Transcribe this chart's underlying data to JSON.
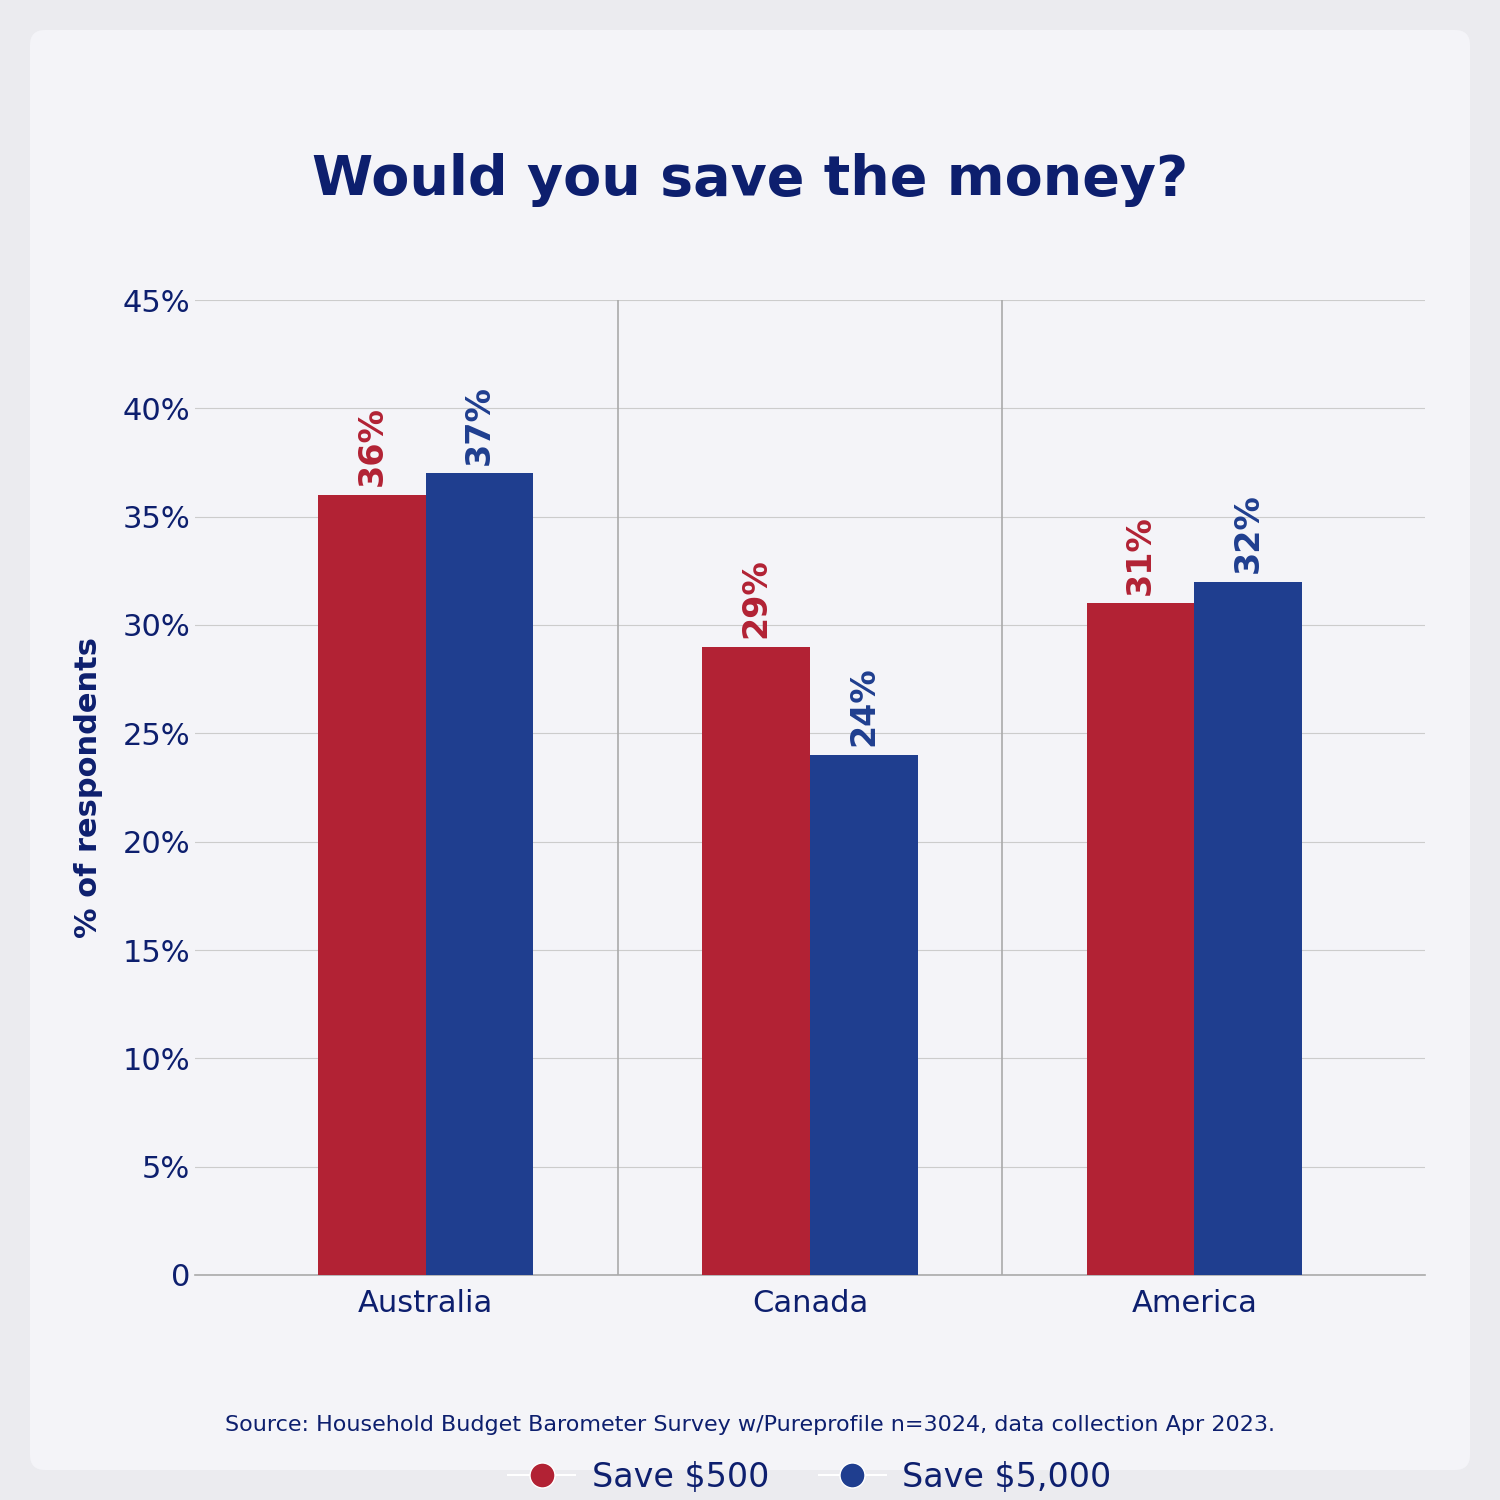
{
  "title": "Would you save the money?",
  "categories": [
    "Australia",
    "Canada",
    "America"
  ],
  "save500": [
    36,
    29,
    31
  ],
  "save5000": [
    37,
    24,
    32
  ],
  "color_red": "#B22234",
  "color_blue": "#1F3E8F",
  "ylabel": "% of respondents",
  "ylim": [
    0,
    45
  ],
  "yticks": [
    0,
    5,
    10,
    15,
    20,
    25,
    30,
    35,
    40,
    45
  ],
  "legend_labels": [
    "Save $500",
    "Save $5,000"
  ],
  "source_text": "Source: Household Budget Barometer Survey w/Pureprofile n=3024, data collection Apr 2023.",
  "background_color": "#EBEBEF",
  "card_color": "#F4F4F8",
  "title_color": "#0D1F6E",
  "tick_color": "#0D1F6E",
  "label_color": "#0D1F6E",
  "bar_width": 0.28,
  "title_fontsize": 40,
  "axis_fontsize": 22,
  "tick_fontsize": 22,
  "label_fontsize": 22,
  "legend_fontsize": 24,
  "source_fontsize": 16,
  "annot_fontsize": 24
}
